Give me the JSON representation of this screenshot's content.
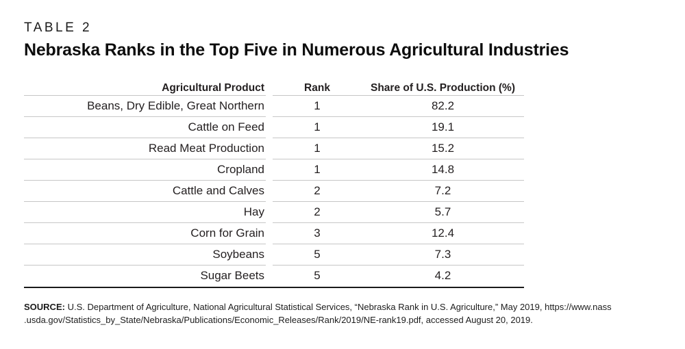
{
  "eyebrow": "TABLE 2",
  "title": "Nebraska Ranks in the Top Five in Numerous Agricultural Industries",
  "table": {
    "columns": [
      "Agricultural Product",
      "Rank",
      "Share of U.S. Production (%)"
    ],
    "rows": [
      {
        "product": "Beans, Dry Edible, Great Northern",
        "rank": "1",
        "share": "82.2"
      },
      {
        "product": "Cattle on Feed",
        "rank": "1",
        "share": "19.1"
      },
      {
        "product": "Read Meat Production",
        "rank": "1",
        "share": "15.2"
      },
      {
        "product": "Cropland",
        "rank": "1",
        "share": "14.8"
      },
      {
        "product": "Cattle and Calves",
        "rank": "2",
        "share": "7.2"
      },
      {
        "product": "Hay",
        "rank": "2",
        "share": "5.7"
      },
      {
        "product": "Corn for Grain",
        "rank": "3",
        "share": "12.4"
      },
      {
        "product": "Soybeans",
        "rank": "5",
        "share": "7.3"
      },
      {
        "product": "Sugar Beets",
        "rank": "5",
        "share": "4.2"
      }
    ]
  },
  "source": {
    "label": "SOURCE:",
    "line1": "U.S. Department of Agriculture, National Agricultural Statistical Services, “Nebraska Rank in U.S. Agriculture,” May 2019, https://www.nass",
    "line2": ".usda.gov/Statistics_by_State/Nebraska/Publications/Economic_Releases/Rank/2019/NE-rank19.pdf, accessed August 20, 2019."
  },
  "colors": {
    "rule_gray": "#c6c6c6",
    "rule_black": "#1a1a1a",
    "text": "#231f20"
  }
}
